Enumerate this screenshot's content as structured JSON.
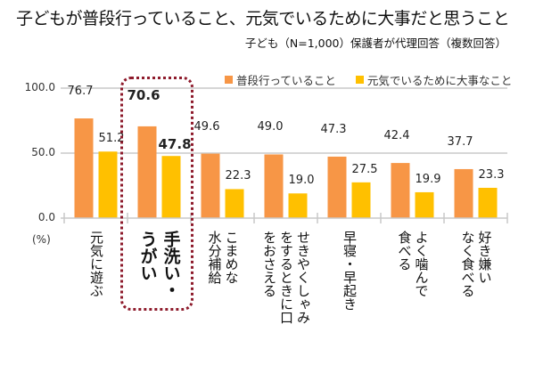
{
  "chart_data": {
    "type": "bar",
    "title": "子どもが普段行っていること、元気でいるために大事だと思うこと",
    "subtitle": "子ども（N=1,000）保護者が代理回答（複数回答）",
    "xlabel": "",
    "ylabel": "(%)",
    "ylim": [
      0,
      100
    ],
    "yticks": [
      "0.0",
      "50.0",
      "100.0"
    ],
    "grid": true,
    "legend_position": "top-right",
    "categories": [
      "元気に遊ぶ",
      "手洗い・うがい",
      "こまめな水分補給",
      "せきやくしゃみをするときに口をおさえる",
      "早寝・早起き",
      "よく噛んで食べる",
      "好き嫌いなく食べる"
    ],
    "category_label_lines": [
      [
        "元気に遊ぶ"
      ],
      [
        "手洗い・",
        "うがい"
      ],
      [
        "こまめな",
        "水分補給"
      ],
      [
        "せきやくしゃみ",
        "をするときに口",
        "をおさえる"
      ],
      [
        "早寝・早起き"
      ],
      [
        "よく噛んで",
        "食べる"
      ],
      [
        "好き嫌い",
        "なく食べる"
      ]
    ],
    "highlighted_category_index": 1,
    "series": [
      {
        "name": "普段行っていること",
        "color": "#F79646",
        "values": [
          76.7,
          70.6,
          49.6,
          49.0,
          47.3,
          42.4,
          37.7
        ],
        "labels": [
          "76.7",
          "70.6",
          "49.6",
          "49.0",
          "47.3",
          "42.4",
          "37.7"
        ]
      },
      {
        "name": "元気でいるために大事なこと",
        "color": "#FFC000",
        "values": [
          51.2,
          47.8,
          22.3,
          19.0,
          27.5,
          19.9,
          23.3
        ],
        "labels": [
          "51.2",
          "47.8",
          "22.3",
          "19.0",
          "27.5",
          "19.9",
          "23.3"
        ]
      }
    ],
    "highlight_color": "#8E1B2C"
  }
}
